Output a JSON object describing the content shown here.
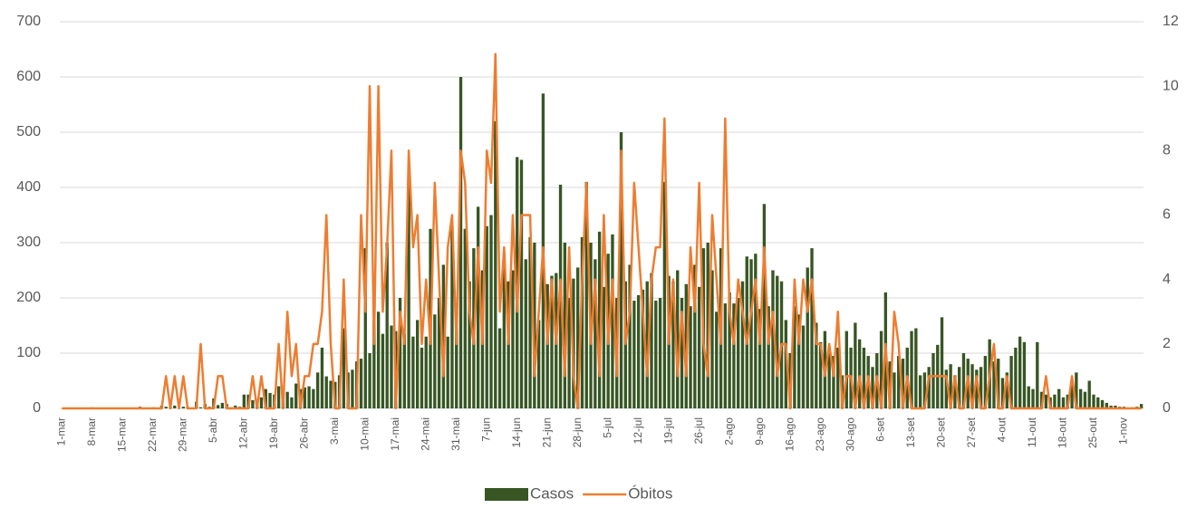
{
  "chart_data": {
    "type": "bar-line",
    "categories": [
      "1-mar",
      null,
      null,
      null,
      null,
      null,
      null,
      "8-mar",
      null,
      null,
      null,
      null,
      null,
      null,
      "15-mar",
      null,
      null,
      null,
      null,
      null,
      null,
      "22-mar",
      null,
      null,
      null,
      null,
      null,
      null,
      "29-mar",
      null,
      null,
      null,
      null,
      null,
      null,
      "5-abr",
      null,
      null,
      null,
      null,
      null,
      null,
      "12-abr",
      null,
      null,
      null,
      null,
      null,
      null,
      "19-abr",
      null,
      null,
      null,
      null,
      null,
      null,
      "26-abr",
      null,
      null,
      null,
      null,
      null,
      null,
      "3-mai",
      null,
      null,
      null,
      null,
      null,
      null,
      "10-mai",
      null,
      null,
      null,
      null,
      null,
      null,
      "17-mai",
      null,
      null,
      null,
      null,
      null,
      null,
      "24-mai",
      null,
      null,
      null,
      null,
      null,
      null,
      "31-mai",
      null,
      null,
      null,
      null,
      null,
      null,
      "7-jun",
      null,
      null,
      null,
      null,
      null,
      null,
      "14-jun",
      null,
      null,
      null,
      null,
      null,
      null,
      "21-jun",
      null,
      null,
      null,
      null,
      null,
      null,
      "28-jun",
      null,
      null,
      null,
      null,
      null,
      null,
      "5-jul",
      null,
      null,
      null,
      null,
      null,
      null,
      "12-jul",
      null,
      null,
      null,
      null,
      null,
      null,
      "19-jul",
      null,
      null,
      null,
      null,
      null,
      null,
      "26-jul",
      null,
      null,
      null,
      null,
      null,
      null,
      "2-ago",
      null,
      null,
      null,
      null,
      null,
      null,
      "9-ago",
      null,
      null,
      null,
      null,
      null,
      null,
      "16-ago",
      null,
      null,
      null,
      null,
      null,
      null,
      "23-ago",
      null,
      null,
      null,
      null,
      null,
      null,
      "30-ago",
      null,
      null,
      null,
      null,
      null,
      null,
      "6-set",
      null,
      null,
      null,
      null,
      null,
      null,
      "13-set",
      null,
      null,
      null,
      null,
      null,
      null,
      "20-set",
      null,
      null,
      null,
      null,
      null,
      null,
      "27-set",
      null,
      null,
      null,
      null,
      null,
      null,
      "4-out",
      null,
      null,
      null,
      null,
      null,
      null,
      "11-out",
      null,
      null,
      null,
      null,
      null,
      null,
      "18-out",
      null,
      null,
      null,
      null,
      null,
      null,
      "25-out",
      null,
      null,
      null,
      null,
      null,
      null,
      "1-nov",
      null,
      null,
      null,
      null
    ],
    "series": [
      {
        "name": "Casos",
        "type": "bar",
        "axis": "y",
        "color": "#375623",
        "values": [
          0,
          0,
          0,
          0,
          0,
          0,
          0,
          2,
          0,
          0,
          0,
          0,
          0,
          0,
          0,
          0,
          0,
          0,
          3,
          0,
          0,
          2,
          0,
          5,
          3,
          2,
          5,
          0,
          3,
          2,
          0,
          12,
          2,
          8,
          3,
          18,
          6,
          10,
          8,
          2,
          5,
          3,
          25,
          25,
          15,
          12,
          20,
          35,
          28,
          25,
          40,
          32,
          30,
          20,
          45,
          35,
          38,
          40,
          35,
          65,
          110,
          58,
          50,
          48,
          60,
          145,
          65,
          70,
          85,
          90,
          290,
          100,
          160,
          175,
          135,
          300,
          150,
          140,
          200,
          135,
          415,
          130,
          160,
          110,
          130,
          325,
          170,
          200,
          260,
          130,
          330,
          145,
          600,
          325,
          230,
          290,
          365,
          250,
          330,
          350,
          520,
          145,
          280,
          230,
          250,
          455,
          450,
          270,
          310,
          300,
          160,
          570,
          225,
          240,
          245,
          405,
          300,
          200,
          235,
          255,
          310,
          410,
          300,
          270,
          320,
          220,
          280,
          315,
          200,
          500,
          230,
          260,
          195,
          205,
          215,
          230,
          245,
          195,
          200,
          410,
          240,
          230,
          250,
          200,
          225,
          185,
          260,
          220,
          290,
          300,
          250,
          175,
          290,
          190,
          210,
          190,
          200,
          230,
          275,
          270,
          280,
          180,
          370,
          185,
          250,
          240,
          230,
          160,
          100,
          185,
          170,
          150,
          255,
          290,
          155,
          120,
          140,
          110,
          95,
          110,
          60,
          140,
          110,
          155,
          125,
          110,
          95,
          75,
          100,
          140,
          210,
          85,
          65,
          95,
          90,
          110,
          140,
          145,
          60,
          65,
          75,
          100,
          115,
          165,
          70,
          80,
          60,
          75,
          100,
          90,
          80,
          70,
          75,
          95,
          125,
          85,
          90,
          55,
          65,
          95,
          110,
          130,
          120,
          40,
          35,
          120,
          30,
          25,
          20,
          25,
          35,
          20,
          25,
          45,
          65,
          35,
          30,
          50,
          25,
          20,
          15,
          10,
          5,
          5,
          3,
          3,
          0,
          2,
          3,
          8
        ]
      },
      {
        "name": "Óbitos",
        "type": "line",
        "axis": "y2",
        "color": "#ed7d31",
        "values": [
          0,
          0,
          0,
          0,
          0,
          0,
          0,
          0,
          0,
          0,
          0,
          0,
          0,
          0,
          0,
          0,
          0,
          0,
          0,
          0,
          0,
          0,
          0,
          0,
          1,
          0,
          1,
          0,
          1,
          0,
          0,
          0,
          2,
          0,
          0,
          0,
          1,
          1,
          0,
          0,
          0,
          0,
          0,
          0,
          1,
          0,
          1,
          0,
          0,
          0,
          2,
          0,
          3,
          1,
          2,
          0,
          1,
          1,
          2,
          2,
          3,
          6,
          2,
          0,
          0,
          4,
          0,
          0,
          0,
          6,
          3,
          10,
          2,
          10,
          3,
          5,
          8,
          0,
          3,
          2,
          8,
          5,
          6,
          2,
          4,
          2,
          7,
          4,
          1,
          5,
          6,
          2,
          8,
          7,
          3,
          2,
          5,
          2,
          8,
          7,
          11,
          3,
          5,
          2,
          6,
          3,
          6,
          6,
          6,
          1,
          3,
          5,
          2,
          4,
          2,
          4,
          1,
          5,
          1,
          0,
          4,
          7,
          2,
          4,
          1,
          6,
          2,
          4,
          1,
          8,
          2,
          3,
          7,
          5,
          3,
          1,
          4,
          5,
          5,
          9,
          2,
          4,
          1,
          3,
          1,
          5,
          3,
          7,
          2,
          1,
          6,
          4,
          2,
          9,
          3,
          2,
          4,
          3,
          2,
          3,
          4,
          2,
          5,
          2,
          3,
          1,
          2,
          2,
          0,
          4,
          2,
          4,
          3,
          4,
          2,
          2,
          1,
          2,
          1,
          3,
          0,
          1,
          1,
          0,
          1,
          0,
          1,
          0,
          1,
          0,
          2,
          0,
          3,
          2,
          0,
          1,
          0,
          0,
          0,
          0,
          1,
          1,
          1,
          1,
          1,
          0,
          1,
          0,
          0,
          1,
          0,
          1,
          0,
          0,
          1,
          2,
          0,
          0,
          1,
          0,
          0,
          0,
          0,
          0,
          0,
          0,
          0,
          1,
          0,
          0,
          0,
          0,
          0,
          1,
          0,
          0,
          0,
          0,
          0,
          0,
          0,
          0,
          0,
          0,
          0,
          0,
          0,
          0,
          0,
          0
        ]
      }
    ],
    "ylim": [
      0,
      700
    ],
    "yticks": [
      0,
      100,
      200,
      300,
      400,
      500,
      600,
      700
    ],
    "y2lim": [
      0,
      12
    ],
    "y2ticks": [
      0,
      2,
      4,
      6,
      8,
      10,
      12
    ],
    "grid": true,
    "legend": "bottom"
  }
}
